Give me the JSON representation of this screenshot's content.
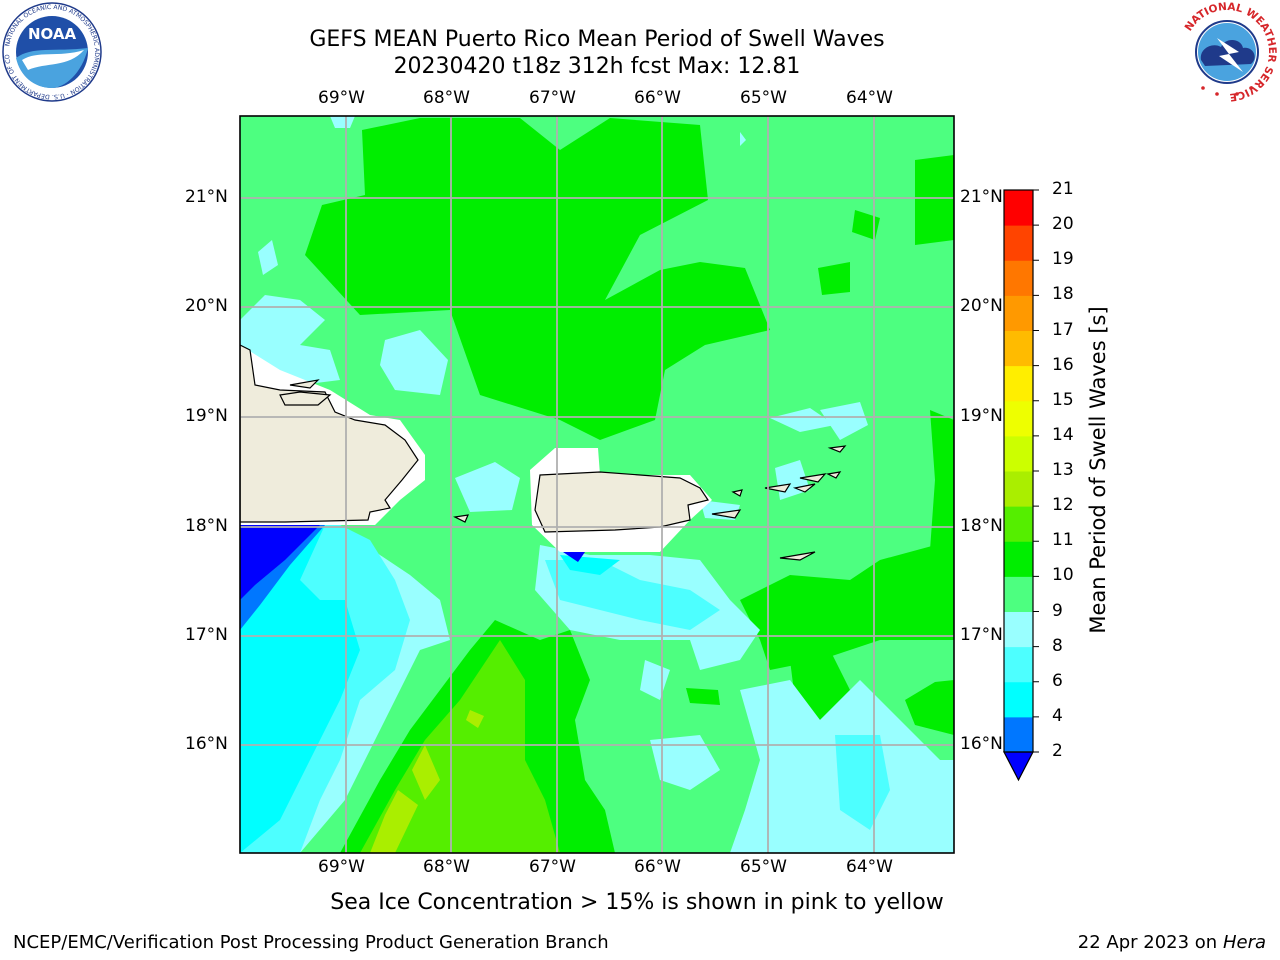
{
  "header": {
    "title_line1": "GEFS MEAN Puerto Rico Mean Period of Swell Waves",
    "title_line2": "20230420 t18z 312h fcst   Max: 12.81"
  },
  "map": {
    "lon_ticks": [
      "69°W",
      "68°W",
      "67°W",
      "66°W",
      "65°W",
      "64°W"
    ],
    "lat_ticks": [
      "21°N",
      "20°N",
      "19°N",
      "18°N",
      "17°N",
      "16°N"
    ],
    "grid": true,
    "land_color": "#efecdc",
    "no_data_color": "#ffffff"
  },
  "colorbar": {
    "label": "Mean Period of Swell Waves [s]",
    "unit": "s",
    "levels": [
      {
        "value": "2",
        "color": "#0000ff"
      },
      {
        "value": "4",
        "color": "#0077ff"
      },
      {
        "value": "6",
        "color": "#00ffff"
      },
      {
        "value": "8",
        "color": "#4dffff"
      },
      {
        "value": "9",
        "color": "#99ffff"
      },
      {
        "value": "10",
        "color": "#4dff80"
      },
      {
        "value": "11",
        "color": "#00ee00"
      },
      {
        "value": "12",
        "color": "#55ee00"
      },
      {
        "value": "13",
        "color": "#aaee00"
      },
      {
        "value": "14",
        "color": "#ccff00"
      },
      {
        "value": "15",
        "color": "#eeff00"
      },
      {
        "value": "16",
        "color": "#ffee00"
      },
      {
        "value": "17",
        "color": "#ffbb00"
      },
      {
        "value": "18",
        "color": "#ff9900"
      },
      {
        "value": "19",
        "color": "#ff7700"
      },
      {
        "value": "20",
        "color": "#ff4400"
      },
      {
        "value": "21",
        "color": "#ff0000"
      }
    ],
    "extend_min_color": "#0000ff"
  },
  "subcaption": "Sea Ice Concentration > 15% is shown in pink to yellow",
  "footer": {
    "left": "NCEP/EMC/Verification Post Processing Product Generation Branch",
    "right_date": "22 Apr 2023 on ",
    "right_host": "Hera"
  },
  "logos": {
    "left": "noaa-logo",
    "right": "national-weather-service-logo",
    "left_ring_text": "NATIONAL OCEANIC AND ATMOSPHERIC ADMINISTRATION · U.S. DEPARTMENT OF COMMERCE",
    "left_center_text": "NOAA",
    "right_ring_text": "NATIONAL WEATHER SERVICE"
  }
}
